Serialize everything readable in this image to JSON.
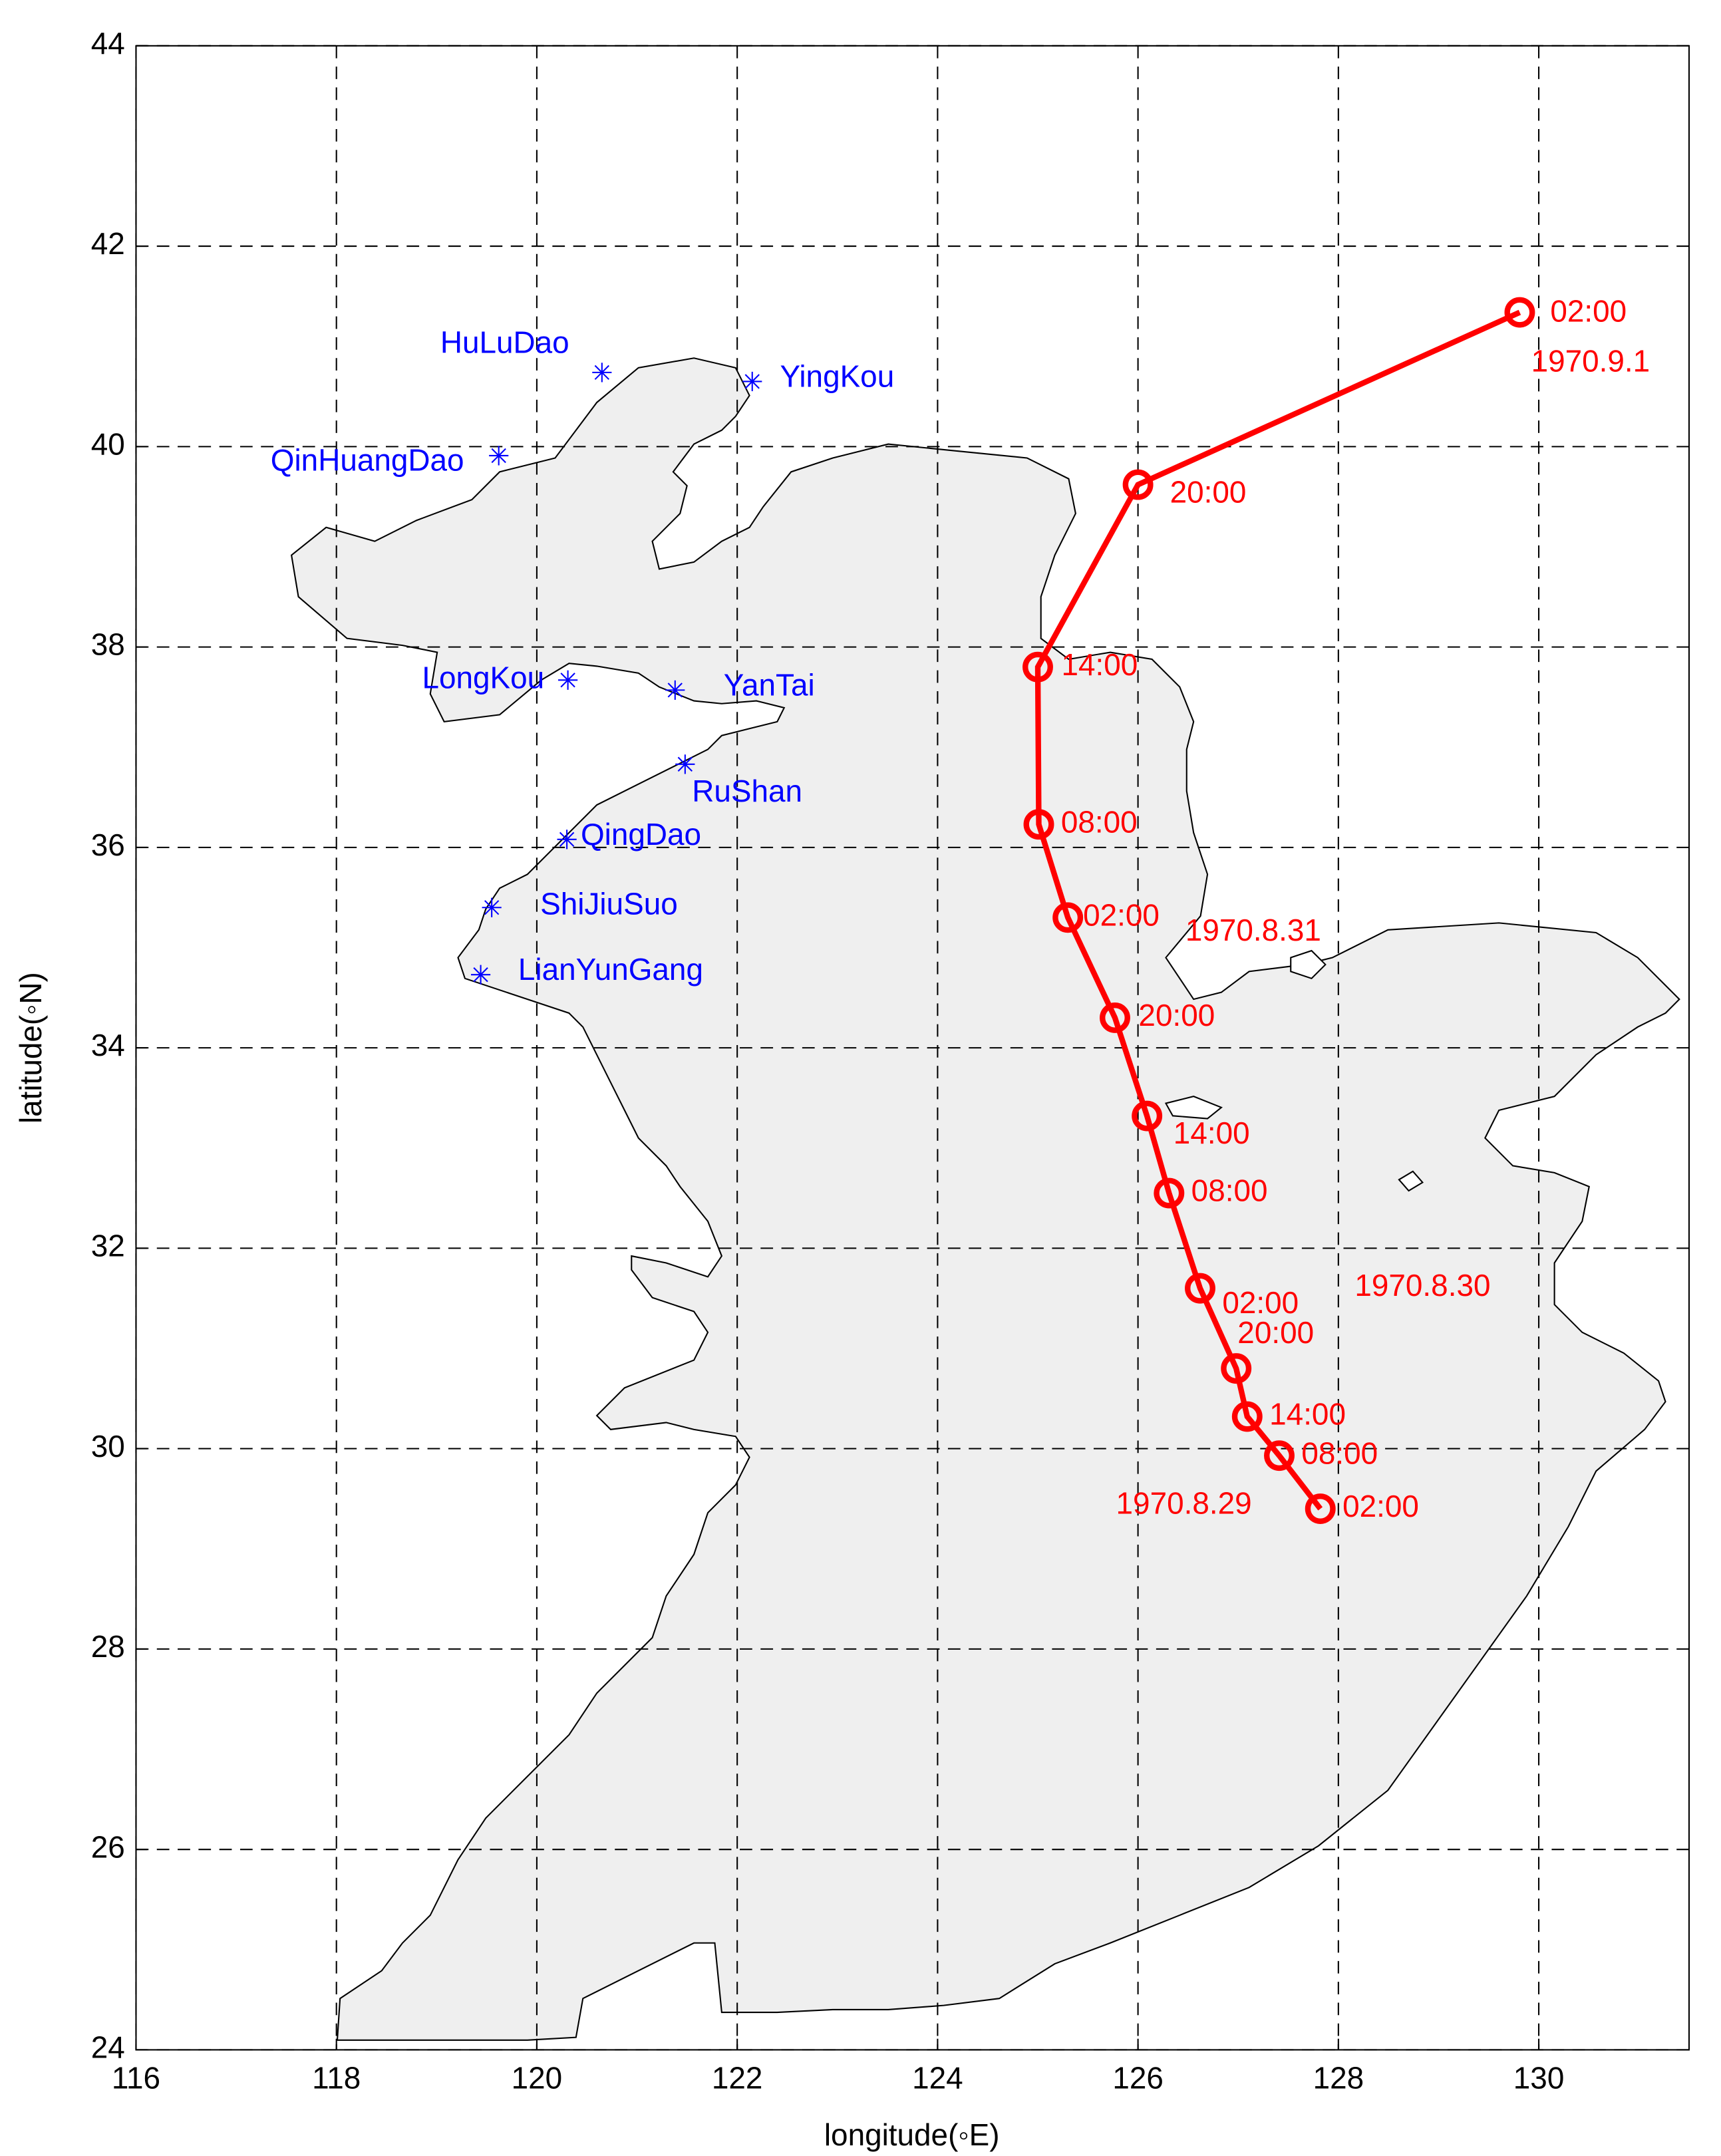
{
  "chart_data": {
    "type": "line",
    "x_label": "longitude(◦E)",
    "y_label": "latitude(◦N)",
    "xlim": [
      116,
      131.5
    ],
    "ylim": [
      24,
      44
    ],
    "xticks": [
      116,
      118,
      120,
      122,
      124,
      126,
      128,
      130
    ],
    "yticks": [
      24,
      26,
      28,
      30,
      32,
      34,
      36,
      38,
      40,
      42,
      44
    ],
    "grid": true,
    "color": "#ff0000",
    "x": [
      127.82,
      127.41,
      127.09,
      126.98,
      126.62,
      126.31,
      126.09,
      125.77,
      125.3,
      125.01,
      125.0,
      126.0,
      129.81
    ],
    "values": [
      29.4,
      29.93,
      30.32,
      30.8,
      31.6,
      32.55,
      33.32,
      34.3,
      35.3,
      36.23,
      37.8,
      39.62,
      41.34
    ],
    "point_labels": [
      "02:00",
      "08:00",
      "14:00",
      "20:00",
      "02:00",
      "08:00",
      "14:00",
      "20:00",
      "02:00",
      "08:00",
      "14:00",
      "20:00",
      "02:00"
    ],
    "dates": [
      "1970.8.29",
      "1970.8.30",
      "1970.8.31",
      "1970.9.1"
    ],
    "stations": {
      "color": "#0000ff",
      "names": [
        "HuLuDao",
        "YingKou",
        "QinHuangDao",
        "LongKou",
        "YanTai",
        "RuShan",
        "QingDao",
        "ShiJiuSuo",
        "LianYunGang"
      ],
      "x": [
        120.65,
        122.15,
        119.62,
        120.31,
        121.38,
        121.48,
        120.3,
        119.55,
        119.44
      ],
      "values": [
        40.74,
        40.65,
        39.91,
        37.67,
        37.57,
        36.83,
        36.08,
        35.4,
        34.73
      ]
    }
  }
}
